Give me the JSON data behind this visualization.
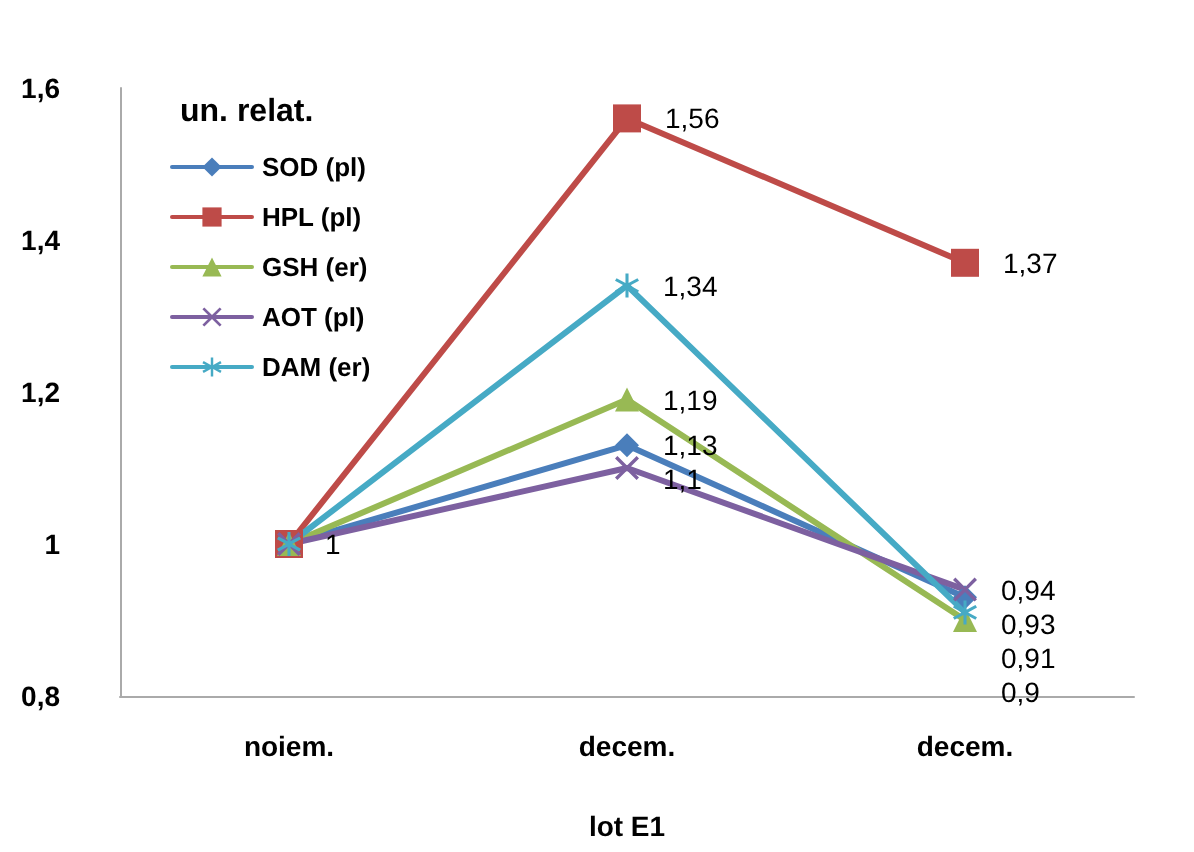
{
  "chart_data": {
    "type": "line",
    "ylabel": "un. relat.",
    "xlabel": "lot E1",
    "categories": [
      "noiem.",
      "decem.",
      "decem."
    ],
    "ylim": [
      0.8,
      1.6
    ],
    "yticks": [
      {
        "value": 0.8,
        "label": "0,8"
      },
      {
        "value": 1,
        "label": "1"
      },
      {
        "value": 1.2,
        "label": "1,2"
      },
      {
        "value": 1.4,
        "label": "1,4"
      },
      {
        "value": 1.6,
        "label": "1,6"
      }
    ],
    "grid": false,
    "legend": "top left",
    "line_style": "solid",
    "series": [
      {
        "name": "SOD (pl)",
        "color": "#4a7ebb",
        "marker": "diamond",
        "values": [
          1,
          1.13,
          0.93
        ],
        "value_labels": [
          "1",
          "1,13",
          "0,93"
        ]
      },
      {
        "name": "HPL (pl)",
        "color": "#be4b48",
        "marker": "square",
        "values": [
          1,
          1.56,
          1.37
        ],
        "value_labels": [
          null,
          "1,56",
          "1,37"
        ]
      },
      {
        "name": "GSH (er)",
        "color": "#98b954",
        "marker": "triangle",
        "values": [
          1,
          1.19,
          0.9
        ],
        "value_labels": [
          null,
          "1,19",
          "0,9"
        ]
      },
      {
        "name": "AOT (pl)",
        "color": "#7d60a0",
        "marker": "cross",
        "values": [
          1,
          1.1,
          0.94
        ],
        "value_labels": [
          null,
          "1,1",
          "0,94"
        ]
      },
      {
        "name": "DAM (er)",
        "color": "#46aac5",
        "marker": "star",
        "values": [
          1,
          1.34,
          0.91
        ],
        "value_labels": [
          null,
          "1,34",
          "0,91"
        ]
      }
    ]
  }
}
